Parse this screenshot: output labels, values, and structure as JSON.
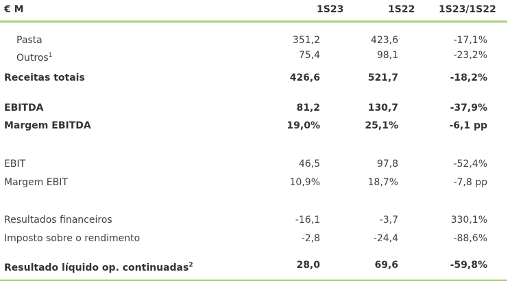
{
  "header": {
    "label": "€ M",
    "columns": [
      "1S23",
      "1S22",
      "1S23/1S22"
    ]
  },
  "rows": [
    {
      "label": "Pasta",
      "values": [
        "351,2",
        "423,6",
        "-17,1%"
      ]
    },
    {
      "label": "Outros",
      "note": "1",
      "values": [
        "75,4",
        "98,1",
        "-23,2%"
      ]
    },
    {
      "label": "Receitas totais",
      "values": [
        "426,6",
        "521,7",
        "-18,2%"
      ]
    },
    {
      "label": "EBITDA",
      "values": [
        "81,2",
        "130,7",
        "-37,9%"
      ]
    },
    {
      "label": "Margem EBITDA",
      "values": [
        "19,0%",
        "25,1%",
        "-6,1 pp"
      ]
    },
    {
      "label": "EBIT",
      "values": [
        "46,5",
        "97,8",
        "-52,4%"
      ]
    },
    {
      "label": "Margem EBIT",
      "values": [
        "10,9%",
        "18,7%",
        "-7,8 pp"
      ]
    },
    {
      "label": "Resultados financeiros",
      "values": [
        "-16,1",
        "-3,7",
        "330,1%"
      ]
    },
    {
      "label": "Imposto sobre o rendimento",
      "values": [
        "-2,8",
        "-24,4",
        "-88,6%"
      ]
    },
    {
      "label": "Resultado líquido op. continuadas",
      "note": "2",
      "values": [
        "28,0",
        "69,6",
        "-59,8%"
      ]
    }
  ]
}
